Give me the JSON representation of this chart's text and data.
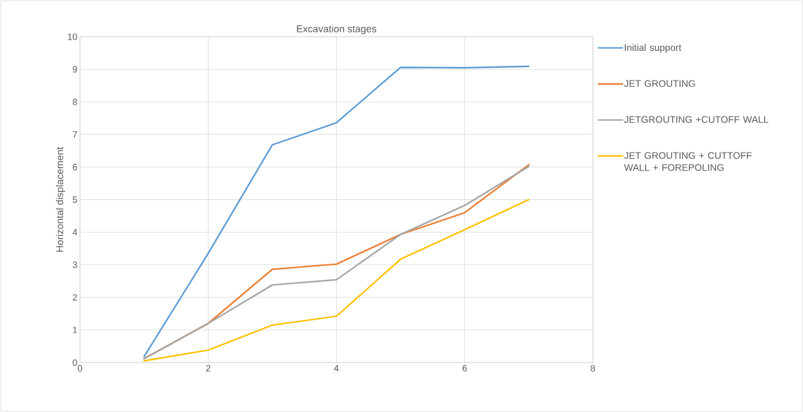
{
  "chart_data": {
    "type": "line",
    "title": "Excavation stages",
    "ylabel": "Horizontal displacement",
    "x": [
      1,
      2,
      3,
      4,
      5,
      6,
      7
    ],
    "series": [
      {
        "name": "Initial support",
        "color": "#5b9bd5",
        "values": [
          0.18,
          3.35,
          6.68,
          7.36,
          9.06,
          9.05,
          9.09
        ]
      },
      {
        "name": "JET GROUTING",
        "color": "#ed7d31",
        "values": [
          0.12,
          1.2,
          2.86,
          3.02,
          3.93,
          4.6,
          6.07
        ]
      },
      {
        "name": "JETGROUTING +CUTOFF WALL",
        "color": "#a5a5a5",
        "values": [
          0.12,
          1.2,
          2.38,
          2.54,
          3.93,
          4.82,
          6.02
        ]
      },
      {
        "name": "JET GROUTING + CUTTOFF WALL + FOREPOLING",
        "color": "#ffc000",
        "values": [
          0.05,
          0.38,
          1.15,
          1.42,
          3.17,
          4.08,
          5.0
        ]
      }
    ],
    "xlim": [
      0,
      8
    ],
    "xticks": [
      0,
      2,
      4,
      6,
      8
    ],
    "ylim": [
      0,
      10
    ],
    "yticks": [
      0,
      1,
      2,
      3,
      4,
      5,
      6,
      7,
      8,
      9,
      10
    ],
    "grid": true,
    "legend": "right",
    "marker": "none",
    "line_style": "solid"
  }
}
